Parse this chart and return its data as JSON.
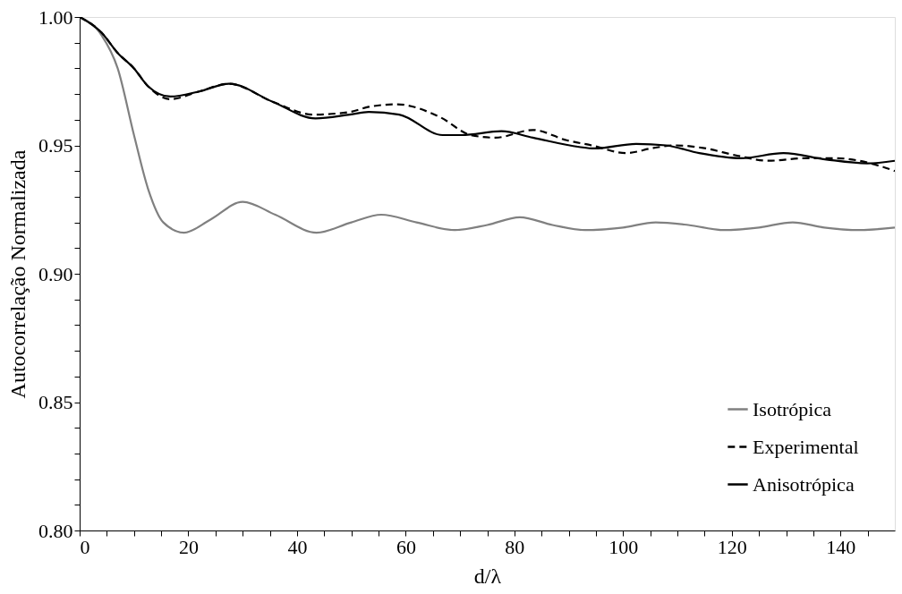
{
  "chart_data": {
    "type": "line",
    "xlabel": "d/λ",
    "ylabel": "Autocorrelação Normalizada",
    "xlim": [
      0,
      150
    ],
    "ylim": [
      0.8,
      1.0
    ],
    "xticks": [
      0,
      {
        "value": 5,
        "label": null
      },
      {
        "value": 10,
        "label": null
      },
      {
        "value": 15,
        "label": null
      },
      20,
      {
        "value": 25,
        "label": null
      },
      {
        "value": 30,
        "label": null
      },
      {
        "value": 35,
        "label": null
      },
      40,
      {
        "value": 45,
        "label": null
      },
      {
        "value": 50,
        "label": null
      },
      {
        "value": 55,
        "label": null
      },
      60,
      {
        "value": 65,
        "label": null
      },
      {
        "value": 70,
        "label": null
      },
      {
        "value": 75,
        "label": null
      },
      80,
      {
        "value": 85,
        "label": null
      },
      {
        "value": 90,
        "label": null
      },
      {
        "value": 95,
        "label": null
      },
      100,
      {
        "value": 105,
        "label": null
      },
      {
        "value": 110,
        "label": null
      },
      {
        "value": 115,
        "label": null
      },
      120,
      {
        "value": 125,
        "label": null
      },
      {
        "value": 130,
        "label": null
      },
      {
        "value": 135,
        "label": null
      },
      140,
      {
        "value": 145,
        "label": null
      }
    ],
    "yticks": [
      {
        "value": 0.8,
        "label": "0.80"
      },
      {
        "value": 0.81,
        "label": null
      },
      {
        "value": 0.82,
        "label": null
      },
      {
        "value": 0.83,
        "label": null
      },
      {
        "value": 0.84,
        "label": null
      },
      {
        "value": 0.85,
        "label": "0.85"
      },
      {
        "value": 0.86,
        "label": null
      },
      {
        "value": 0.87,
        "label": null
      },
      {
        "value": 0.88,
        "label": null
      },
      {
        "value": 0.89,
        "label": null
      },
      {
        "value": 0.9,
        "label": "0.90"
      },
      {
        "value": 0.91,
        "label": null
      },
      {
        "value": 0.92,
        "label": null
      },
      {
        "value": 0.93,
        "label": null
      },
      {
        "value": 0.94,
        "label": null
      },
      {
        "value": 0.95,
        "label": "0.95"
      },
      {
        "value": 0.96,
        "label": null
      },
      {
        "value": 0.97,
        "label": null
      },
      {
        "value": 0.98,
        "label": null
      },
      {
        "value": 0.99,
        "label": null
      },
      {
        "value": 1.0,
        "label": "1.00"
      }
    ],
    "grid": false,
    "legend": "bottom right",
    "marker": "none",
    "series": [
      {
        "name": "Isotrópica",
        "color": "#808080",
        "line_style": "solid",
        "x": [
          0,
          4,
          7,
          10,
          12.6,
          15.4,
          19.2,
          24,
          30,
          36,
          43.6,
          50,
          55.5,
          62,
          69,
          75,
          81,
          87,
          93,
          100,
          106,
          112,
          118.6,
          125,
          131.2,
          137,
          143.2,
          150
        ],
        "values": [
          1.0,
          0.993,
          0.98,
          0.954,
          0.933,
          0.92,
          0.916,
          0.921,
          0.928,
          0.923,
          0.916,
          0.92,
          0.923,
          0.92,
          0.917,
          0.919,
          0.922,
          0.919,
          0.917,
          0.918,
          0.92,
          0.919,
          0.917,
          0.918,
          0.92,
          0.918,
          0.917,
          0.918
        ]
      },
      {
        "name": "Experimental",
        "color": "#000000",
        "line_style": "dashed",
        "x": [
          0,
          4,
          7,
          10,
          12.6,
          16.7,
          22,
          27.5,
          35.5,
          43,
          49.7,
          53.2,
          58.3,
          66.3,
          72,
          76.5,
          83.4,
          89.6,
          94.2,
          100.5,
          105.6,
          109.6,
          114.7,
          121,
          126.7,
          133.5,
          139.1,
          147.2,
          150
        ],
        "values": [
          1.0,
          0.994,
          0.986,
          0.98,
          0.973,
          0.968,
          0.971,
          0.974,
          0.967,
          0.962,
          0.963,
          0.965,
          0.966,
          0.961,
          0.954,
          0.953,
          0.956,
          0.952,
          0.95,
          0.947,
          0.949,
          0.95,
          0.949,
          0.946,
          0.944,
          0.945,
          0.945,
          0.942,
          0.94
        ]
      },
      {
        "name": "Anisotrópica",
        "color": "#000000",
        "line_style": "solid",
        "x": [
          0,
          4,
          7,
          10,
          12.6,
          16.7,
          22,
          27.5,
          35.5,
          43.4,
          49.7,
          53.2,
          58.8,
          66.8,
          70.3,
          77.6,
          83.4,
          91.9,
          94.7,
          102.4,
          107.9,
          114,
          121.7,
          129.5,
          137.4,
          144.9,
          150
        ],
        "values": [
          1.0,
          0.994,
          0.986,
          0.98,
          0.973,
          0.969,
          0.971,
          0.974,
          0.967,
          0.9605,
          0.962,
          0.963,
          0.962,
          0.954,
          0.954,
          0.9555,
          0.953,
          0.9494,
          0.9488,
          0.9506,
          0.95,
          0.947,
          0.945,
          0.947,
          0.9445,
          0.943,
          0.944
        ]
      }
    ]
  }
}
